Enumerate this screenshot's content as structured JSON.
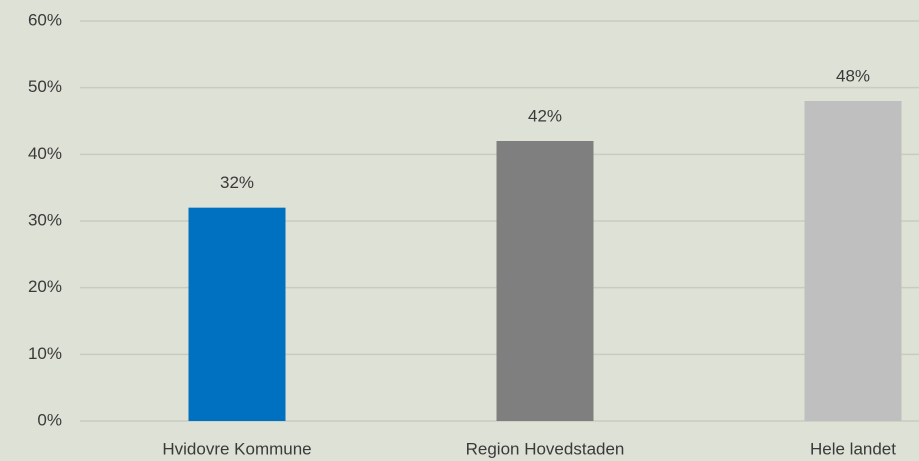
{
  "chart_data": {
    "type": "bar",
    "categories": [
      "Hvidovre Kommune",
      "Region Hovedstaden",
      "Hele landet"
    ],
    "values": [
      32,
      42,
      48
    ],
    "value_labels": [
      "32%",
      "42%",
      "48%"
    ],
    "colors": [
      "#0070c0",
      "#7f7f7f",
      "#bfbfbf"
    ],
    "ylim": [
      0,
      60
    ],
    "yticks": [
      {
        "value": 0,
        "label": "0%"
      },
      {
        "value": 10,
        "label": "10%"
      },
      {
        "value": 20,
        "label": "20%"
      },
      {
        "value": 30,
        "label": "30%"
      },
      {
        "value": 40,
        "label": "40%"
      },
      {
        "value": 50,
        "label": "50%"
      },
      {
        "value": 60,
        "label": "60%"
      }
    ],
    "grid": true
  }
}
